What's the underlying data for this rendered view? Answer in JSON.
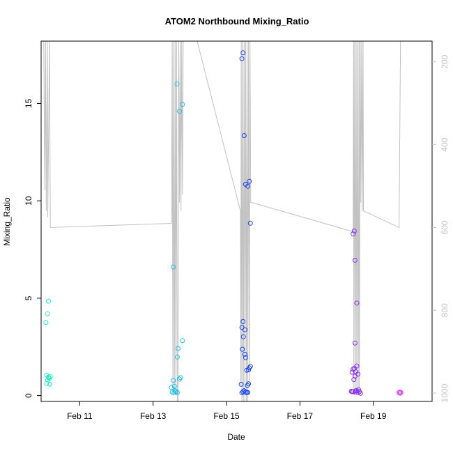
{
  "chart_data": {
    "type": "scatter",
    "title": "ATOM2 Northbound Mixing_Ratio",
    "xlabel": "Date",
    "ylabel": "Mixing_Ratio",
    "xlim_days": [
      9.95,
      20.6
    ],
    "ylim": [
      -0.3,
      18.2
    ],
    "x_ticks": [
      {
        "day": 11,
        "label": "Feb 11"
      },
      {
        "day": 13,
        "label": "Feb 13"
      },
      {
        "day": 15,
        "label": "Feb 15"
      },
      {
        "day": 17,
        "label": "Feb 17"
      },
      {
        "day": 19,
        "label": "Feb 19"
      }
    ],
    "y_ticks": [
      {
        "value": 0,
        "label": "0"
      },
      {
        "value": 5,
        "label": "5"
      },
      {
        "value": 10,
        "label": "10"
      },
      {
        "value": 15,
        "label": "15"
      }
    ],
    "y2_axis": {
      "reversed": true,
      "lim": [
        1020,
        150
      ],
      "ticks": [
        {
          "value": 200,
          "label": "200"
        },
        {
          "value": 400,
          "label": "400"
        },
        {
          "value": 600,
          "label": "600"
        },
        {
          "value": 800,
          "label": "800"
        },
        {
          "value": 1000,
          "label": "1000"
        }
      ],
      "color": "#c0c0c0"
    },
    "grid": false,
    "legend": "none",
    "series": [
      {
        "color": "#26e8c0",
        "points": [
          [
            10.15,
            4.85
          ],
          [
            10.12,
            4.2
          ],
          [
            10.08,
            3.75
          ],
          [
            10.1,
            1.05
          ],
          [
            10.15,
            0.95
          ],
          [
            10.2,
            0.98
          ],
          [
            10.17,
            0.88
          ],
          [
            10.13,
            0.8
          ],
          [
            10.1,
            0.62
          ],
          [
            10.19,
            0.58
          ],
          [
            10.16,
            0.92
          ]
        ]
      },
      {
        "color": "#1ec0e0",
        "points": [
          [
            13.55,
            6.6
          ],
          [
            13.65,
            16.0
          ],
          [
            13.72,
            14.6
          ],
          [
            13.8,
            14.95
          ],
          [
            13.8,
            2.82
          ],
          [
            13.68,
            2.42
          ],
          [
            13.66,
            1.98
          ],
          [
            13.75,
            0.92
          ],
          [
            13.72,
            0.85
          ],
          [
            13.55,
            0.78
          ],
          [
            13.5,
            0.42
          ],
          [
            13.58,
            0.48
          ],
          [
            13.6,
            0.25
          ],
          [
            13.52,
            0.18
          ],
          [
            13.62,
            0.2
          ],
          [
            13.66,
            0.15
          ],
          [
            13.57,
            0.14
          ]
        ]
      },
      {
        "color": "#1a44e8",
        "points": [
          [
            15.45,
            17.6
          ],
          [
            15.42,
            17.3
          ],
          [
            15.48,
            13.35
          ],
          [
            15.52,
            10.85
          ],
          [
            15.62,
            11.0
          ],
          [
            15.58,
            10.75
          ],
          [
            15.65,
            8.85
          ],
          [
            15.45,
            3.8
          ],
          [
            15.42,
            3.5
          ],
          [
            15.5,
            3.38
          ],
          [
            15.46,
            3.02
          ],
          [
            15.43,
            2.38
          ],
          [
            15.5,
            2.12
          ],
          [
            15.52,
            1.95
          ],
          [
            15.65,
            1.5
          ],
          [
            15.62,
            1.42
          ],
          [
            15.6,
            1.32
          ],
          [
            15.55,
            1.3
          ],
          [
            15.4,
            0.58
          ],
          [
            15.6,
            0.6
          ],
          [
            15.57,
            0.52
          ],
          [
            15.48,
            0.25
          ],
          [
            15.45,
            0.2
          ],
          [
            15.52,
            0.18
          ],
          [
            15.58,
            0.16
          ],
          [
            15.42,
            0.14
          ],
          [
            15.55,
            0.15
          ]
        ]
      },
      {
        "color": "#8a2ef0",
        "points": [
          [
            18.45,
            8.3
          ],
          [
            18.48,
            8.45
          ],
          [
            18.5,
            6.95
          ],
          [
            18.55,
            4.75
          ],
          [
            18.5,
            2.7
          ],
          [
            18.55,
            1.52
          ],
          [
            18.48,
            1.4
          ],
          [
            18.45,
            1.35
          ],
          [
            18.52,
            1.22
          ],
          [
            18.58,
            1.1
          ],
          [
            18.42,
            1.2
          ],
          [
            18.5,
            1.0
          ],
          [
            18.47,
            0.82
          ],
          [
            18.4,
            0.22
          ],
          [
            18.45,
            0.2
          ],
          [
            18.5,
            0.18
          ],
          [
            18.55,
            0.25
          ],
          [
            18.6,
            0.3
          ],
          [
            18.62,
            0.2
          ],
          [
            18.65,
            0.12
          ],
          [
            18.58,
            0.15
          ],
          [
            18.52,
            0.25
          ],
          [
            18.42,
            0.2
          ]
        ]
      },
      {
        "color": "#e040f0",
        "points": [
          [
            19.7,
            0.15
          ],
          [
            19.73,
            0.12
          ],
          [
            19.75,
            0.16
          ],
          [
            19.72,
            0.18
          ]
        ]
      }
    ],
    "pressure_line": {
      "color": "#c0c0c0",
      "points": [
        [
          10.02,
          150
        ],
        [
          10.05,
          510
        ],
        [
          10.07,
          150
        ],
        [
          10.09,
          560
        ],
        [
          10.12,
          150
        ],
        [
          10.13,
          575
        ],
        [
          10.18,
          150
        ],
        [
          10.2,
          600
        ],
        [
          13.5,
          590
        ],
        [
          13.52,
          150
        ],
        [
          13.54,
          1000
        ],
        [
          13.56,
          150
        ],
        [
          13.58,
          1000
        ],
        [
          13.6,
          150
        ],
        [
          13.62,
          1000
        ],
        [
          13.64,
          150
        ],
        [
          13.66,
          1030
        ],
        [
          13.68,
          1030
        ],
        [
          13.7,
          150
        ],
        [
          13.72,
          540
        ],
        [
          13.74,
          150
        ],
        [
          13.76,
          560
        ],
        [
          13.78,
          150
        ],
        [
          13.8,
          520
        ],
        [
          13.82,
          150
        ],
        [
          14.2,
          150
        ],
        [
          15.38,
          560
        ],
        [
          15.39,
          980
        ],
        [
          15.4,
          150
        ],
        [
          15.42,
          1050
        ],
        [
          15.44,
          150
        ],
        [
          15.46,
          1050
        ],
        [
          15.48,
          150
        ],
        [
          15.5,
          1070
        ],
        [
          15.52,
          150
        ],
        [
          15.54,
          1070
        ],
        [
          15.56,
          150
        ],
        [
          15.58,
          1050
        ],
        [
          15.6,
          150
        ],
        [
          15.62,
          980
        ],
        [
          15.64,
          150
        ],
        [
          15.66,
          540
        ],
        [
          15.7,
          540
        ],
        [
          18.45,
          610
        ],
        [
          18.46,
          150
        ],
        [
          18.47,
          1000
        ],
        [
          18.49,
          150
        ],
        [
          18.51,
          1000
        ],
        [
          18.53,
          150
        ],
        [
          18.55,
          1000
        ],
        [
          18.57,
          150
        ],
        [
          18.59,
          1000
        ],
        [
          18.61,
          150
        ],
        [
          18.62,
          1000
        ],
        [
          18.64,
          150
        ],
        [
          18.66,
          540
        ],
        [
          18.68,
          150
        ],
        [
          18.7,
          560
        ],
        [
          18.72,
          150
        ],
        [
          18.73,
          560
        ],
        [
          19.7,
          600
        ],
        [
          19.74,
          150
        ]
      ]
    }
  }
}
